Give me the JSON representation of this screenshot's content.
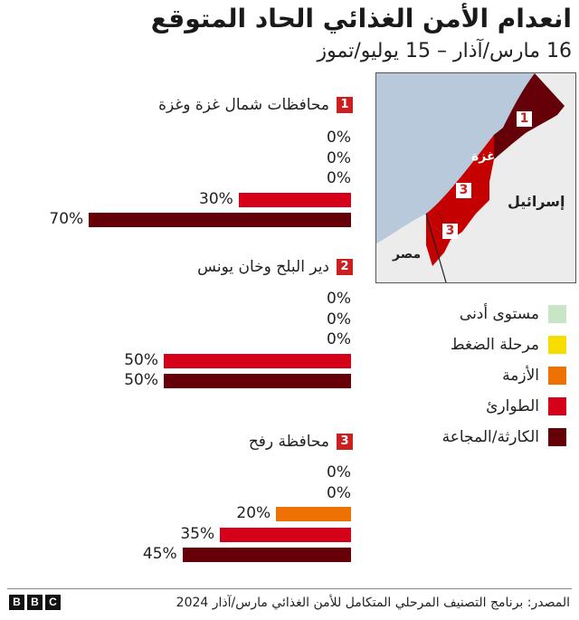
{
  "header": {
    "title": "انعدام الأمن الغذائي الحاد المتوقع",
    "subtitle": "16 مارس/آذار – 15 يوليو/تموز"
  },
  "map": {
    "labels": {
      "gaza_city": "غزة",
      "israel": "إسرائيل",
      "egypt": "مصر"
    },
    "badges": [
      "1",
      "2",
      "3"
    ],
    "colors": {
      "sea": "#b8c9dc",
      "land": "#ececec",
      "zone1": "#650009",
      "zone2": "#c40000",
      "zone3": "#c40000"
    }
  },
  "legend": {
    "items": [
      {
        "label": "مستوى أدنى",
        "color": "#c8e6c5"
      },
      {
        "label": "مرحلة الضغط",
        "color": "#f7de00"
      },
      {
        "label": "الأزمة",
        "color": "#ee7203"
      },
      {
        "label": "الطوارئ",
        "color": "#d50019"
      },
      {
        "label": "الكارثة/المجاعة",
        "color": "#650009"
      }
    ]
  },
  "chart_data": {
    "type": "bar",
    "orientation": "horizontal",
    "title": "انعدام الأمن الغذائي الحاد المتوقع",
    "subtitle": "16 مارس/آذار – 15 يوليو/تموز",
    "xlabel": "",
    "ylabel": "",
    "xlim": [
      0,
      100
    ],
    "grid": false,
    "legend_position": "right",
    "categories": [
      "مستوى أدنى",
      "مرحلة الضغط",
      "الأزمة",
      "الطوارئ",
      "الكارثة/المجاعة"
    ],
    "series": [
      {
        "name": "محافظات شمال غزة وغزة",
        "badge": "1",
        "values": [
          0,
          0,
          0,
          30,
          70
        ],
        "labels": [
          "0%",
          "0%",
          "0%",
          "30%",
          "70%"
        ]
      },
      {
        "name": "دير البلح وخان يونس",
        "badge": "2",
        "values": [
          0,
          0,
          0,
          50,
          50
        ],
        "labels": [
          "0%",
          "0%",
          "0%",
          "50%",
          "50%"
        ]
      },
      {
        "name": "محافظة رفح",
        "badge": "3",
        "values": [
          0,
          0,
          20,
          35,
          45
        ],
        "labels": [
          "0%",
          "0%",
          "20%",
          "35%",
          "45%"
        ]
      }
    ]
  },
  "footer": {
    "source": "المصدر: برنامج التصنيف المرحلي المتكامل للأمن الغذائي مارس/آذار 2024",
    "logo": [
      "B",
      "B",
      "C"
    ]
  }
}
